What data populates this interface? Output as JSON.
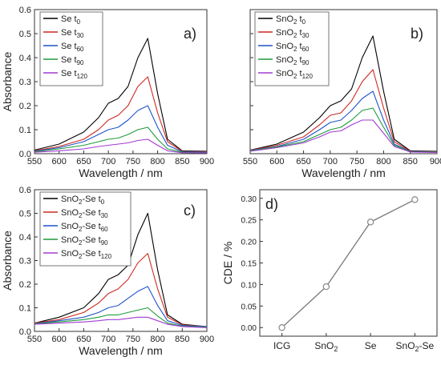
{
  "figure": {
    "panels": [
      {
        "tag": "a)",
        "ylabel": "Absorbance",
        "xlabel": "Wavelength / nm",
        "legend": [
          {
            "base": "Se t",
            "sub": "0"
          },
          {
            "base": "Se t",
            "sub": "30"
          },
          {
            "base": "Se t",
            "sub": "60"
          },
          {
            "base": "Se t",
            "sub": "90"
          },
          {
            "base": "Se t",
            "sub": "120"
          }
        ]
      },
      {
        "tag": "b)",
        "ylabel": "",
        "xlabel": "Wavelength / nm",
        "legend": [
          {
            "base": "SnO",
            "sub2": "2",
            "base2": " t",
            "sub": "0"
          },
          {
            "base": "SnO",
            "sub2": "2",
            "base2": " t",
            "sub": "30"
          },
          {
            "base": "SnO",
            "sub2": "2",
            "base2": " t",
            "sub": "60"
          },
          {
            "base": "SnO",
            "sub2": "2",
            "base2": " t",
            "sub": "90"
          },
          {
            "base": "SnO",
            "sub2": "2",
            "base2": " t",
            "sub": "120"
          }
        ]
      },
      {
        "tag": "c)",
        "ylabel": "Absorbance",
        "xlabel": "Wavelength / nm",
        "legend": [
          {
            "base": "SnO",
            "sub2": "2",
            "base2": "-Se t",
            "sub": "0"
          },
          {
            "base": "SnO",
            "sub2": "2",
            "base2": "-Se t",
            "sub": "30"
          },
          {
            "base": "SnO",
            "sub2": "2",
            "base2": "-Se t",
            "sub": "60"
          },
          {
            "base": "SnO",
            "sub2": "2",
            "base2": "-Se t",
            "sub": "90"
          },
          {
            "base": "SnO",
            "sub2": "2",
            "base2": "-Se t",
            "sub": "120"
          }
        ]
      },
      {
        "tag": "d)",
        "ylabel": "CDE / %",
        "xlabel": ""
      }
    ]
  },
  "chart_data": [
    {
      "type": "line",
      "panel": "a)",
      "xlabel": "Wavelength / nm",
      "ylabel": "Absorbance",
      "xlim": [
        550,
        900
      ],
      "ylim": [
        0,
        0.6
      ],
      "xticks": [
        550,
        600,
        650,
        700,
        750,
        800,
        850,
        900
      ],
      "yticks": [
        0.0,
        0.1,
        0.2,
        0.3,
        0.4,
        0.5,
        0.6
      ],
      "x": [
        550,
        600,
        650,
        680,
        700,
        720,
        740,
        760,
        780,
        800,
        820,
        850,
        900
      ],
      "series": [
        {
          "name": "Se t0",
          "color": "#000000",
          "values": [
            0.015,
            0.04,
            0.09,
            0.15,
            0.21,
            0.23,
            0.28,
            0.4,
            0.48,
            0.25,
            0.06,
            0.012,
            0.01
          ]
        },
        {
          "name": "Se t30",
          "color": "#cc2a1f",
          "values": [
            0.012,
            0.03,
            0.06,
            0.1,
            0.14,
            0.16,
            0.2,
            0.28,
            0.32,
            0.17,
            0.05,
            0.01,
            0.008
          ]
        },
        {
          "name": "Se t60",
          "color": "#1f54c8",
          "values": [
            0.01,
            0.025,
            0.05,
            0.08,
            0.1,
            0.11,
            0.14,
            0.18,
            0.2,
            0.11,
            0.035,
            0.008,
            0.006
          ]
        },
        {
          "name": "Se t90",
          "color": "#1f9c3a",
          "values": [
            0.008,
            0.02,
            0.035,
            0.05,
            0.06,
            0.065,
            0.08,
            0.1,
            0.11,
            0.06,
            0.02,
            0.006,
            0.004
          ]
        },
        {
          "name": "Se t120",
          "color": "#a23bd3",
          "values": [
            0.006,
            0.012,
            0.02,
            0.03,
            0.035,
            0.04,
            0.045,
            0.055,
            0.06,
            0.035,
            0.012,
            0.004,
            0.003
          ]
        }
      ]
    },
    {
      "type": "line",
      "panel": "b)",
      "xlabel": "Wavelength / nm",
      "ylabel": "",
      "xlim": [
        550,
        900
      ],
      "ylim": [
        0,
        0.6
      ],
      "xticks": [
        550,
        600,
        650,
        700,
        750,
        800,
        850,
        900
      ],
      "x": [
        550,
        600,
        650,
        680,
        700,
        720,
        740,
        760,
        780,
        800,
        820,
        850,
        900
      ],
      "series": [
        {
          "name": "SnO2 t0",
          "color": "#000000",
          "values": [
            0.015,
            0.04,
            0.09,
            0.15,
            0.2,
            0.22,
            0.27,
            0.4,
            0.49,
            0.26,
            0.06,
            0.012,
            0.01
          ]
        },
        {
          "name": "SnO2 t30",
          "color": "#cc2a1f",
          "values": [
            0.014,
            0.035,
            0.07,
            0.12,
            0.16,
            0.17,
            0.22,
            0.3,
            0.35,
            0.19,
            0.05,
            0.01,
            0.008
          ]
        },
        {
          "name": "SnO2 t60",
          "color": "#1f54c8",
          "values": [
            0.013,
            0.03,
            0.06,
            0.1,
            0.13,
            0.14,
            0.18,
            0.23,
            0.26,
            0.14,
            0.04,
            0.009,
            0.007
          ]
        },
        {
          "name": "SnO2 t90",
          "color": "#1f9c3a",
          "values": [
            0.012,
            0.028,
            0.05,
            0.08,
            0.1,
            0.11,
            0.14,
            0.18,
            0.19,
            0.11,
            0.035,
            0.008,
            0.006
          ]
        },
        {
          "name": "SnO2 t120",
          "color": "#a23bd3",
          "values": [
            0.01,
            0.025,
            0.045,
            0.07,
            0.09,
            0.095,
            0.12,
            0.14,
            0.14,
            0.085,
            0.03,
            0.007,
            0.005
          ]
        }
      ]
    },
    {
      "type": "line",
      "panel": "c)",
      "xlabel": "Wavelength / nm",
      "ylabel": "Absorbance",
      "xlim": [
        550,
        900
      ],
      "ylim": [
        0,
        0.6
      ],
      "xticks": [
        550,
        600,
        650,
        700,
        750,
        800,
        850,
        900
      ],
      "yticks": [
        0.0,
        0.1,
        0.2,
        0.3,
        0.4,
        0.5,
        0.6
      ],
      "x": [
        550,
        600,
        650,
        680,
        700,
        720,
        740,
        760,
        780,
        800,
        820,
        850,
        900
      ],
      "series": [
        {
          "name": "SnO2-Se t0",
          "color": "#000000",
          "values": [
            0.035,
            0.06,
            0.1,
            0.16,
            0.22,
            0.24,
            0.28,
            0.41,
            0.5,
            0.26,
            0.07,
            0.03,
            0.02
          ]
        },
        {
          "name": "SnO2-Se t30",
          "color": "#cc2a1f",
          "values": [
            0.035,
            0.05,
            0.08,
            0.12,
            0.16,
            0.18,
            0.22,
            0.29,
            0.33,
            0.18,
            0.06,
            0.028,
            0.02
          ]
        },
        {
          "name": "SnO2-Se t60",
          "color": "#1f54c8",
          "values": [
            0.033,
            0.045,
            0.06,
            0.08,
            0.1,
            0.11,
            0.14,
            0.17,
            0.19,
            0.11,
            0.045,
            0.025,
            0.02
          ]
        },
        {
          "name": "SnO2-Se t90",
          "color": "#1f9c3a",
          "values": [
            0.032,
            0.04,
            0.05,
            0.06,
            0.07,
            0.07,
            0.08,
            0.09,
            0.1,
            0.065,
            0.035,
            0.022,
            0.018
          ]
        },
        {
          "name": "SnO2-Se t120",
          "color": "#a23bd3",
          "values": [
            0.03,
            0.035,
            0.04,
            0.045,
            0.05,
            0.05,
            0.055,
            0.06,
            0.06,
            0.045,
            0.03,
            0.02,
            0.016
          ]
        }
      ]
    },
    {
      "type": "line",
      "panel": "d)",
      "xlabel": "",
      "ylabel": "CDE / %",
      "categories": [
        "ICG",
        "SnO2",
        "Se",
        "SnO2-Se"
      ],
      "values": [
        0.0,
        0.095,
        0.245,
        0.297
      ],
      "ylim": [
        -0.02,
        0.32
      ],
      "yticks": [
        0.0,
        0.05,
        0.1,
        0.15,
        0.2,
        0.25,
        0.3
      ],
      "color": "#777777"
    }
  ]
}
